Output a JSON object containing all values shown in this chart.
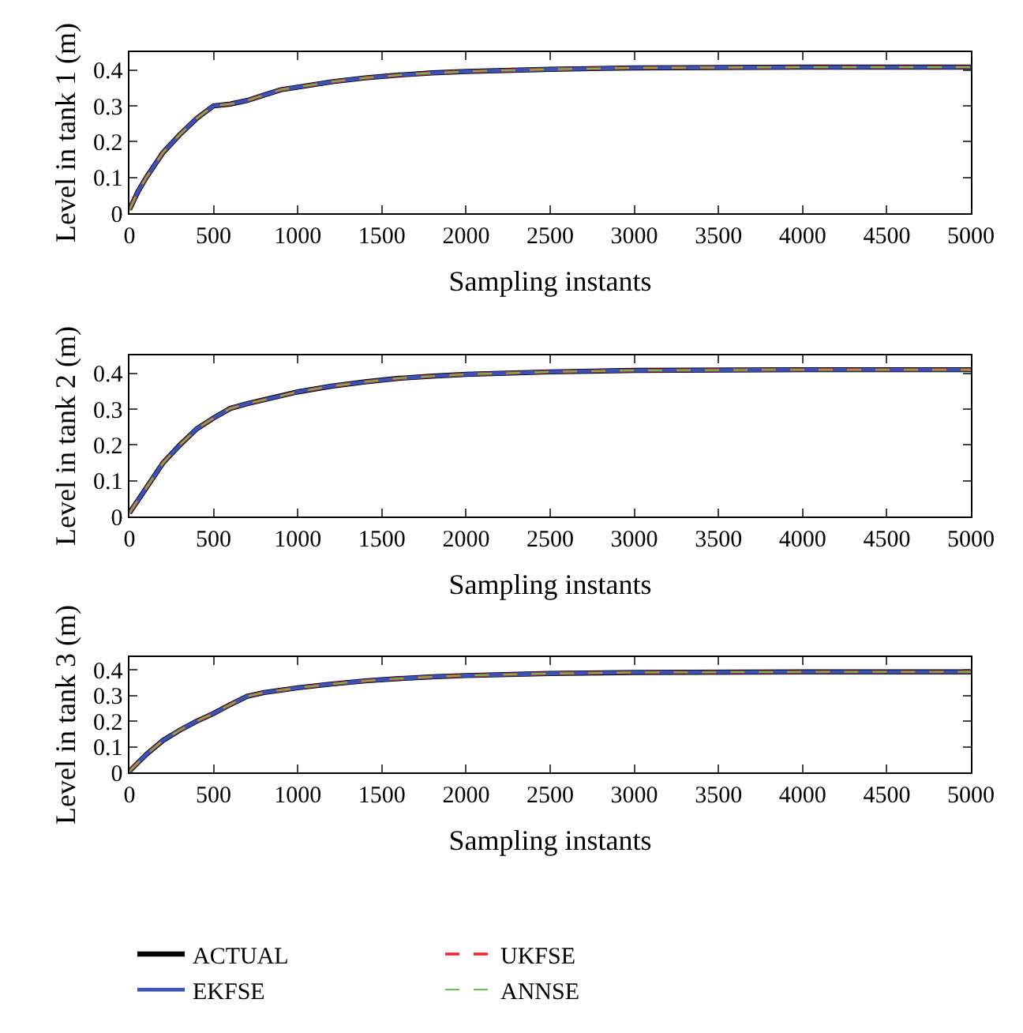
{
  "chart_data": [
    {
      "type": "line",
      "xlabel": "Sampling instants",
      "ylabel": "Level in tank 1 (m)",
      "xlim": [
        0,
        5000
      ],
      "ylim": [
        0,
        0.45
      ],
      "xticks": [
        0,
        500,
        1000,
        1500,
        2000,
        2500,
        3000,
        3500,
        4000,
        4500,
        5000
      ],
      "yticks": [
        0,
        0.1,
        0.2,
        0.3,
        0.4
      ],
      "grid": false,
      "legend": false,
      "x": [
        0,
        50,
        100,
        200,
        300,
        400,
        500,
        600,
        700,
        800,
        900,
        1000,
        1200,
        1400,
        1600,
        1800,
        2000,
        2500,
        3000,
        3500,
        4000,
        4500,
        5000
      ],
      "series": [
        {
          "color": "#000000",
          "line_style": "solid",
          "values": [
            0.01,
            0.06,
            0.1,
            0.17,
            0.22,
            0.265,
            0.3,
            0.305,
            0.315,
            0.33,
            0.345,
            0.352,
            0.367,
            0.378,
            0.386,
            0.392,
            0.396,
            0.402,
            0.406,
            0.407,
            0.408,
            0.408,
            0.408
          ]
        },
        {
          "color": "#3f51b5",
          "line_style": "solid",
          "values": [
            0.01,
            0.06,
            0.1,
            0.17,
            0.22,
            0.265,
            0.3,
            0.305,
            0.315,
            0.33,
            0.345,
            0.352,
            0.367,
            0.378,
            0.386,
            0.392,
            0.396,
            0.402,
            0.406,
            0.407,
            0.408,
            0.408,
            0.408
          ]
        },
        {
          "color": "#e8262b",
          "line_style": "dashed",
          "values": [
            0.01,
            0.06,
            0.1,
            0.17,
            0.22,
            0.265,
            0.3,
            0.305,
            0.315,
            0.33,
            0.345,
            0.352,
            0.367,
            0.378,
            0.386,
            0.392,
            0.396,
            0.402,
            0.406,
            0.407,
            0.408,
            0.408,
            0.408
          ]
        },
        {
          "color": "#6cc04a",
          "line_style": "dashed",
          "values": [
            0.01,
            0.06,
            0.1,
            0.17,
            0.22,
            0.265,
            0.3,
            0.305,
            0.315,
            0.33,
            0.345,
            0.352,
            0.367,
            0.378,
            0.386,
            0.392,
            0.396,
            0.402,
            0.406,
            0.407,
            0.408,
            0.408,
            0.408
          ]
        }
      ]
    },
    {
      "type": "line",
      "xlabel": "Sampling instants",
      "ylabel": "Level in tank 2 (m)",
      "xlim": [
        0,
        5000
      ],
      "ylim": [
        0,
        0.45
      ],
      "xticks": [
        0,
        500,
        1000,
        1500,
        2000,
        2500,
        3000,
        3500,
        4000,
        4500,
        5000
      ],
      "yticks": [
        0,
        0.1,
        0.2,
        0.3,
        0.4
      ],
      "grid": false,
      "legend": false,
      "x": [
        0,
        100,
        200,
        300,
        400,
        500,
        600,
        700,
        800,
        1000,
        1200,
        1400,
        1600,
        1800,
        2000,
        2500,
        3000,
        4000,
        5000
      ],
      "series": [
        {
          "color": "#000000",
          "line_style": "solid",
          "values": [
            0.01,
            0.08,
            0.15,
            0.2,
            0.245,
            0.275,
            0.302,
            0.315,
            0.326,
            0.348,
            0.364,
            0.376,
            0.386,
            0.392,
            0.397,
            0.404,
            0.408,
            0.41,
            0.41
          ]
        },
        {
          "color": "#3f51b5",
          "line_style": "solid",
          "values": [
            0.01,
            0.08,
            0.15,
            0.2,
            0.245,
            0.275,
            0.302,
            0.315,
            0.326,
            0.348,
            0.364,
            0.376,
            0.386,
            0.392,
            0.397,
            0.404,
            0.408,
            0.41,
            0.41
          ]
        },
        {
          "color": "#e8262b",
          "line_style": "dashed",
          "values": [
            0.01,
            0.08,
            0.15,
            0.2,
            0.245,
            0.275,
            0.302,
            0.315,
            0.326,
            0.348,
            0.364,
            0.376,
            0.386,
            0.392,
            0.397,
            0.404,
            0.408,
            0.41,
            0.41
          ]
        },
        {
          "color": "#6cc04a",
          "line_style": "dashed",
          "values": [
            0.01,
            0.08,
            0.15,
            0.2,
            0.245,
            0.275,
            0.302,
            0.315,
            0.326,
            0.348,
            0.364,
            0.376,
            0.386,
            0.392,
            0.397,
            0.404,
            0.408,
            0.41,
            0.41
          ]
        }
      ]
    },
    {
      "type": "line",
      "xlabel": "Sampling instants",
      "ylabel": "Level in tank 3 (m)",
      "xlim": [
        0,
        5000
      ],
      "ylim": [
        0,
        0.45
      ],
      "xticks": [
        0,
        500,
        1000,
        1500,
        2000,
        2500,
        3000,
        3500,
        4000,
        4500,
        5000
      ],
      "yticks": [
        0,
        0.1,
        0.2,
        0.3,
        0.4
      ],
      "grid": false,
      "legend": "bottom",
      "x": [
        0,
        100,
        200,
        300,
        400,
        500,
        600,
        700,
        800,
        1000,
        1200,
        1400,
        1600,
        1800,
        2000,
        2500,
        3000,
        4000,
        5000
      ],
      "series": [
        {
          "name": "ACTUAL",
          "color": "#000000",
          "line_style": "solid",
          "values": [
            0.005,
            0.07,
            0.125,
            0.165,
            0.2,
            0.23,
            0.265,
            0.297,
            0.312,
            0.33,
            0.345,
            0.357,
            0.366,
            0.373,
            0.378,
            0.386,
            0.39,
            0.392,
            0.392
          ]
        },
        {
          "name": "EKFSE",
          "color": "#3f51b5",
          "line_style": "solid",
          "values": [
            0.005,
            0.07,
            0.125,
            0.165,
            0.2,
            0.23,
            0.265,
            0.297,
            0.312,
            0.33,
            0.345,
            0.357,
            0.366,
            0.373,
            0.378,
            0.386,
            0.39,
            0.392,
            0.392
          ]
        },
        {
          "name": "UKFSE",
          "color": "#e8262b",
          "line_style": "dashed",
          "values": [
            0.005,
            0.07,
            0.125,
            0.165,
            0.2,
            0.23,
            0.265,
            0.297,
            0.312,
            0.33,
            0.345,
            0.357,
            0.366,
            0.373,
            0.378,
            0.386,
            0.39,
            0.392,
            0.392
          ]
        },
        {
          "name": "ANNSE",
          "color": "#6cc04a",
          "line_style": "dashed",
          "values": [
            0.005,
            0.07,
            0.125,
            0.165,
            0.2,
            0.23,
            0.265,
            0.297,
            0.312,
            0.33,
            0.345,
            0.357,
            0.366,
            0.373,
            0.378,
            0.386,
            0.39,
            0.392,
            0.392
          ]
        }
      ]
    }
  ]
}
